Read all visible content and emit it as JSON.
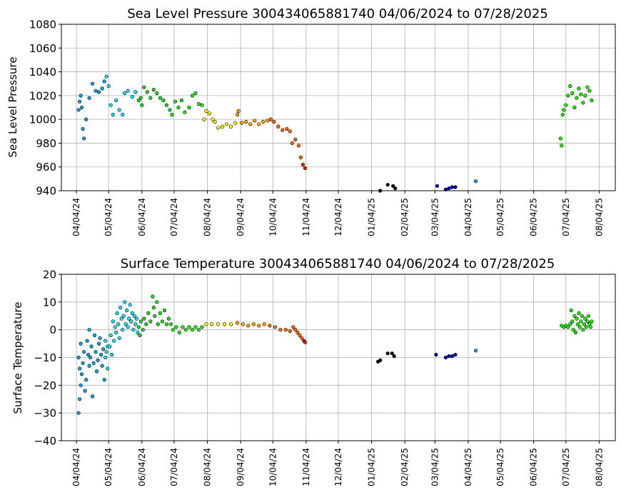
{
  "chart_data": [
    {
      "type": "scatter",
      "title": "Sea Level Pressure 300434065881740  04/06/2024 to 07/28/2025",
      "xlabel": "",
      "ylabel": "Sea Level Pressure",
      "ylim": [
        940,
        1080
      ],
      "yticks": [
        "940",
        "960",
        "980",
        "1000",
        "1020",
        "1040",
        "1060",
        "1080"
      ],
      "xlim": [
        "2024-03-21",
        "2025-08-19"
      ],
      "xticks": [
        "2024-04-04",
        "2024-05-04",
        "2024-06-04",
        "2024-07-04",
        "2024-08-04",
        "2024-09-04",
        "2024-10-04",
        "2024-11-04",
        "2024-12-04",
        "2025-01-04",
        "2025-02-04",
        "2025-03-04",
        "2025-04-04",
        "2025-05-04",
        "2025-06-04",
        "2025-07-04",
        "2025-08-04"
      ],
      "xtick_labels": [
        "04/04/24",
        "05/04/24",
        "06/04/24",
        "07/04/24",
        "08/04/24",
        "09/04/24",
        "10/04/24",
        "11/04/24",
        "12/04/24",
        "01/04/25",
        "02/04/25",
        "03/04/25",
        "04/04/25",
        "05/04/25",
        "06/04/25",
        "07/04/25",
        "08/04/25"
      ],
      "grid": true,
      "color_by": "month",
      "points": [
        [
          "2024-04-06",
          1008
        ],
        [
          "2024-04-07",
          1015
        ],
        [
          "2024-04-08",
          1020
        ],
        [
          "2024-04-09",
          1010
        ],
        [
          "2024-04-10",
          992
        ],
        [
          "2024-04-11",
          984
        ],
        [
          "2024-04-13",
          1000
        ],
        [
          "2024-04-16",
          1018
        ],
        [
          "2024-04-19",
          1030
        ],
        [
          "2024-04-22",
          1024
        ],
        [
          "2024-04-25",
          1023
        ],
        [
          "2024-04-28",
          1026
        ],
        [
          "2024-04-30",
          1032
        ],
        [
          "2024-05-02",
          1036
        ],
        [
          "2024-05-04",
          1028
        ],
        [
          "2024-05-06",
          1012
        ],
        [
          "2024-05-08",
          1004
        ],
        [
          "2024-05-11",
          1016
        ],
        [
          "2024-05-14",
          1008
        ],
        [
          "2024-05-17",
          1004
        ],
        [
          "2024-05-19",
          1022
        ],
        [
          "2024-05-22",
          1024
        ],
        [
          "2024-05-26",
          1019
        ],
        [
          "2024-05-29",
          1023
        ],
        [
          "2024-06-01",
          1016
        ],
        [
          "2024-06-03",
          1018
        ],
        [
          "2024-06-04",
          1012
        ],
        [
          "2024-06-06",
          1027
        ],
        [
          "2024-06-09",
          1023
        ],
        [
          "2024-06-12",
          1018
        ],
        [
          "2024-06-15",
          1025
        ],
        [
          "2024-06-18",
          1022
        ],
        [
          "2024-06-21",
          1018
        ],
        [
          "2024-06-24",
          1016
        ],
        [
          "2024-06-27",
          1012
        ],
        [
          "2024-06-30",
          1008
        ],
        [
          "2024-07-02",
          1004
        ],
        [
          "2024-07-05",
          1015
        ],
        [
          "2024-07-08",
          1010
        ],
        [
          "2024-07-11",
          1016
        ],
        [
          "2024-07-14",
          1006
        ],
        [
          "2024-07-18",
          1010
        ],
        [
          "2024-07-21",
          1020
        ],
        [
          "2024-07-24",
          1022
        ],
        [
          "2024-07-27",
          1013
        ],
        [
          "2024-07-30",
          1012
        ],
        [
          "2024-08-01",
          1000
        ],
        [
          "2024-08-03",
          1007
        ],
        [
          "2024-08-06",
          1005
        ],
        [
          "2024-08-09",
          1000
        ],
        [
          "2024-08-11",
          998
        ],
        [
          "2024-08-14",
          993
        ],
        [
          "2024-08-18",
          994
        ],
        [
          "2024-08-22",
          996
        ],
        [
          "2024-08-26",
          994
        ],
        [
          "2024-08-30",
          997
        ],
        [
          "2024-09-01",
          1004
        ],
        [
          "2024-09-02",
          1007
        ],
        [
          "2024-09-05",
          997
        ],
        [
          "2024-09-09",
          998
        ],
        [
          "2024-09-13",
          996
        ],
        [
          "2024-09-17",
          999
        ],
        [
          "2024-09-21",
          996
        ],
        [
          "2024-09-25",
          998
        ],
        [
          "2024-09-29",
          999
        ],
        [
          "2024-10-02",
          1000
        ],
        [
          "2024-10-05",
          998
        ],
        [
          "2024-10-09",
          994
        ],
        [
          "2024-10-13",
          991
        ],
        [
          "2024-10-17",
          992
        ],
        [
          "2024-10-20",
          990
        ],
        [
          "2024-10-22",
          980
        ],
        [
          "2024-10-25",
          983
        ],
        [
          "2024-10-28",
          978
        ],
        [
          "2024-10-30",
          968
        ],
        [
          "2024-11-01",
          962
        ],
        [
          "2024-11-03",
          959
        ],
        [
          "2025-01-12",
          940
        ],
        [
          "2025-01-19",
          945
        ],
        [
          "2025-01-24",
          944
        ],
        [
          "2025-01-26",
          942
        ],
        [
          "2025-03-06",
          944
        ],
        [
          "2025-03-14",
          941
        ],
        [
          "2025-03-17",
          942
        ],
        [
          "2025-03-20",
          943
        ],
        [
          "2025-03-23",
          943
        ],
        [
          "2025-04-11",
          948
        ],
        [
          "2025-06-29",
          984
        ],
        [
          "2025-06-30",
          978
        ],
        [
          "2025-07-01",
          1004
        ],
        [
          "2025-07-02",
          1008
        ],
        [
          "2025-07-04",
          1012
        ],
        [
          "2025-07-06",
          1020
        ],
        [
          "2025-07-08",
          1028
        ],
        [
          "2025-07-10",
          1022
        ],
        [
          "2025-07-12",
          1010
        ],
        [
          "2025-07-14",
          1018
        ],
        [
          "2025-07-16",
          1026
        ],
        [
          "2025-07-18",
          1021
        ],
        [
          "2025-07-20",
          1014
        ],
        [
          "2025-07-22",
          1020
        ],
        [
          "2025-07-24",
          1027
        ],
        [
          "2025-07-26",
          1024
        ],
        [
          "2025-07-28",
          1016
        ]
      ]
    },
    {
      "type": "scatter",
      "title": "Surface Temperature 300434065881740  04/06/2024 to 07/28/2025",
      "xlabel": "",
      "ylabel": "Surface Temperature",
      "ylim": [
        -40,
        20
      ],
      "yticks": [
        "−40",
        "−30",
        "−20",
        "−10",
        "0",
        "10",
        "20"
      ],
      "xlim": [
        "2024-03-21",
        "2025-08-19"
      ],
      "xticks": [
        "2024-04-04",
        "2024-05-04",
        "2024-06-04",
        "2024-07-04",
        "2024-08-04",
        "2024-09-04",
        "2024-10-04",
        "2024-11-04",
        "2024-12-04",
        "2025-01-04",
        "2025-02-04",
        "2025-03-04",
        "2025-04-04",
        "2025-05-04",
        "2025-06-04",
        "2025-07-04",
        "2025-08-04"
      ],
      "xtick_labels": [
        "04/04/24",
        "05/04/24",
        "06/04/24",
        "07/04/24",
        "08/04/24",
        "09/04/24",
        "10/04/24",
        "11/04/24",
        "12/04/24",
        "01/04/25",
        "02/04/25",
        "03/04/25",
        "04/04/25",
        "05/04/25",
        "06/04/25",
        "07/04/25",
        "08/04/25"
      ],
      "grid": true,
      "color_by": "month",
      "points": [
        [
          "2024-04-06",
          -10
        ],
        [
          "2024-04-06",
          -30
        ],
        [
          "2024-04-07",
          -25
        ],
        [
          "2024-04-07",
          -14
        ],
        [
          "2024-04-08",
          -20
        ],
        [
          "2024-04-08",
          -5
        ],
        [
          "2024-04-09",
          -16
        ],
        [
          "2024-04-10",
          -12
        ],
        [
          "2024-04-11",
          -8
        ],
        [
          "2024-04-12",
          -22
        ],
        [
          "2024-04-13",
          -18
        ],
        [
          "2024-04-14",
          -4
        ],
        [
          "2024-04-15",
          -9
        ],
        [
          "2024-04-16",
          0
        ],
        [
          "2024-04-16",
          -13
        ],
        [
          "2024-04-17",
          -10
        ],
        [
          "2024-04-18",
          -6
        ],
        [
          "2024-04-19",
          -24
        ],
        [
          "2024-04-20",
          -12
        ],
        [
          "2024-04-21",
          -2
        ],
        [
          "2024-04-22",
          -8
        ],
        [
          "2024-04-23",
          -15
        ],
        [
          "2024-04-24",
          -11
        ],
        [
          "2024-04-25",
          -5
        ],
        [
          "2024-04-26",
          -3
        ],
        [
          "2024-04-27",
          -9
        ],
        [
          "2024-04-28",
          -13
        ],
        [
          "2024-04-29",
          -7
        ],
        [
          "2024-04-30",
          -18
        ],
        [
          "2024-05-01",
          -10
        ],
        [
          "2024-05-01",
          -4
        ],
        [
          "2024-05-02",
          -8
        ],
        [
          "2024-05-03",
          -14
        ],
        [
          "2024-05-03",
          -6
        ],
        [
          "2024-05-05",
          -6
        ],
        [
          "2024-05-06",
          -2
        ],
        [
          "2024-05-07",
          -9
        ],
        [
          "2024-05-08",
          3
        ],
        [
          "2024-05-09",
          -4
        ],
        [
          "2024-05-10",
          1
        ],
        [
          "2024-05-11",
          -1
        ],
        [
          "2024-05-12",
          6
        ],
        [
          "2024-05-13",
          2
        ],
        [
          "2024-05-14",
          -3
        ],
        [
          "2024-05-15",
          8
        ],
        [
          "2024-05-16",
          4
        ],
        [
          "2024-05-17",
          0
        ],
        [
          "2024-05-18",
          5
        ],
        [
          "2024-05-19",
          10
        ],
        [
          "2024-05-20",
          2
        ],
        [
          "2024-05-21",
          7
        ],
        [
          "2024-05-22",
          1
        ],
        [
          "2024-05-23",
          4
        ],
        [
          "2024-05-24",
          9
        ],
        [
          "2024-05-25",
          3
        ],
        [
          "2024-05-26",
          6
        ],
        [
          "2024-05-27",
          0
        ],
        [
          "2024-05-28",
          5
        ],
        [
          "2024-05-29",
          2
        ],
        [
          "2024-05-30",
          4
        ],
        [
          "2024-05-31",
          -1
        ],
        [
          "2024-06-01",
          1
        ],
        [
          "2024-06-02",
          -2
        ],
        [
          "2024-06-03",
          3
        ],
        [
          "2024-06-05",
          0
        ],
        [
          "2024-06-06",
          4
        ],
        [
          "2024-06-08",
          2
        ],
        [
          "2024-06-10",
          6
        ],
        [
          "2024-06-12",
          3
        ],
        [
          "2024-06-14",
          12
        ],
        [
          "2024-06-15",
          8
        ],
        [
          "2024-06-16",
          5
        ],
        [
          "2024-06-18",
          10
        ],
        [
          "2024-06-19",
          2
        ],
        [
          "2024-06-21",
          6
        ],
        [
          "2024-06-23",
          3
        ],
        [
          "2024-06-25",
          7
        ],
        [
          "2024-06-27",
          2
        ],
        [
          "2024-06-29",
          4
        ],
        [
          "2024-07-01",
          2
        ],
        [
          "2024-07-03",
          0
        ],
        [
          "2024-07-06",
          1
        ],
        [
          "2024-07-09",
          -1
        ],
        [
          "2024-07-12",
          1
        ],
        [
          "2024-07-15",
          0
        ],
        [
          "2024-07-18",
          1
        ],
        [
          "2024-07-21",
          0
        ],
        [
          "2024-07-24",
          1
        ],
        [
          "2024-07-27",
          0
        ],
        [
          "2024-07-30",
          1
        ],
        [
          "2024-08-03",
          2
        ],
        [
          "2024-08-08",
          2
        ],
        [
          "2024-08-14",
          2
        ],
        [
          "2024-08-20",
          2
        ],
        [
          "2024-08-26",
          2
        ],
        [
          "2024-09-01",
          2.5
        ],
        [
          "2024-09-06",
          2
        ],
        [
          "2024-09-11",
          1.5
        ],
        [
          "2024-09-16",
          2
        ],
        [
          "2024-09-21",
          1.5
        ],
        [
          "2024-09-26",
          2
        ],
        [
          "2024-10-01",
          1.5
        ],
        [
          "2024-10-06",
          1
        ],
        [
          "2024-10-11",
          0
        ],
        [
          "2024-10-16",
          0
        ],
        [
          "2024-10-20",
          -0.5
        ],
        [
          "2024-10-23",
          1
        ],
        [
          "2024-10-25",
          0
        ],
        [
          "2024-10-27",
          -1
        ],
        [
          "2024-10-29",
          -2
        ],
        [
          "2024-10-31",
          -3
        ],
        [
          "2024-11-02",
          -4
        ],
        [
          "2024-11-03",
          -4.5
        ],
        [
          "2025-01-10",
          -11.5
        ],
        [
          "2025-01-12",
          -11
        ],
        [
          "2025-01-19",
          -8.5
        ],
        [
          "2025-01-23",
          -8.5
        ],
        [
          "2025-01-25",
          -9.5
        ],
        [
          "2025-03-05",
          -9
        ],
        [
          "2025-03-14",
          -10
        ],
        [
          "2025-03-17",
          -9.5
        ],
        [
          "2025-03-20",
          -9.5
        ],
        [
          "2025-03-23",
          -9
        ],
        [
          "2025-04-11",
          -7.5
        ],
        [
          "2025-06-30",
          1.5
        ],
        [
          "2025-07-02",
          1
        ],
        [
          "2025-07-04",
          1.5
        ],
        [
          "2025-07-06",
          1
        ],
        [
          "2025-07-08",
          2
        ],
        [
          "2025-07-09",
          7
        ],
        [
          "2025-07-10",
          3
        ],
        [
          "2025-07-11",
          0
        ],
        [
          "2025-07-12",
          5
        ],
        [
          "2025-07-13",
          -1
        ],
        [
          "2025-07-14",
          4
        ],
        [
          "2025-07-15",
          2
        ],
        [
          "2025-07-16",
          6
        ],
        [
          "2025-07-17",
          1
        ],
        [
          "2025-07-18",
          3
        ],
        [
          "2025-07-19",
          5
        ],
        [
          "2025-07-20",
          0
        ],
        [
          "2025-07-21",
          2
        ],
        [
          "2025-07-22",
          4
        ],
        [
          "2025-07-23",
          1
        ],
        [
          "2025-07-24",
          3
        ],
        [
          "2025-07-25",
          5
        ],
        [
          "2025-07-26",
          2
        ],
        [
          "2025-07-27",
          1
        ],
        [
          "2025-07-28",
          3
        ]
      ]
    }
  ],
  "month_colors": {
    "2024-04": "#1aa0d8",
    "2024-05": "#19e3ef",
    "2024-06": "#2ad52a",
    "2024-07": "#22ee00",
    "2024-08": "#ffff00",
    "2024-09": "#ffa500",
    "2024-10": "#ff6a00",
    "2024-11": "#e82000",
    "2025-01": "#000000",
    "2025-03": "#0000b4",
    "2025-04": "#1aa0d8",
    "2025-06": "#22ee00",
    "2025-07": "#22ee00"
  },
  "marker_edge_color": "#000000"
}
